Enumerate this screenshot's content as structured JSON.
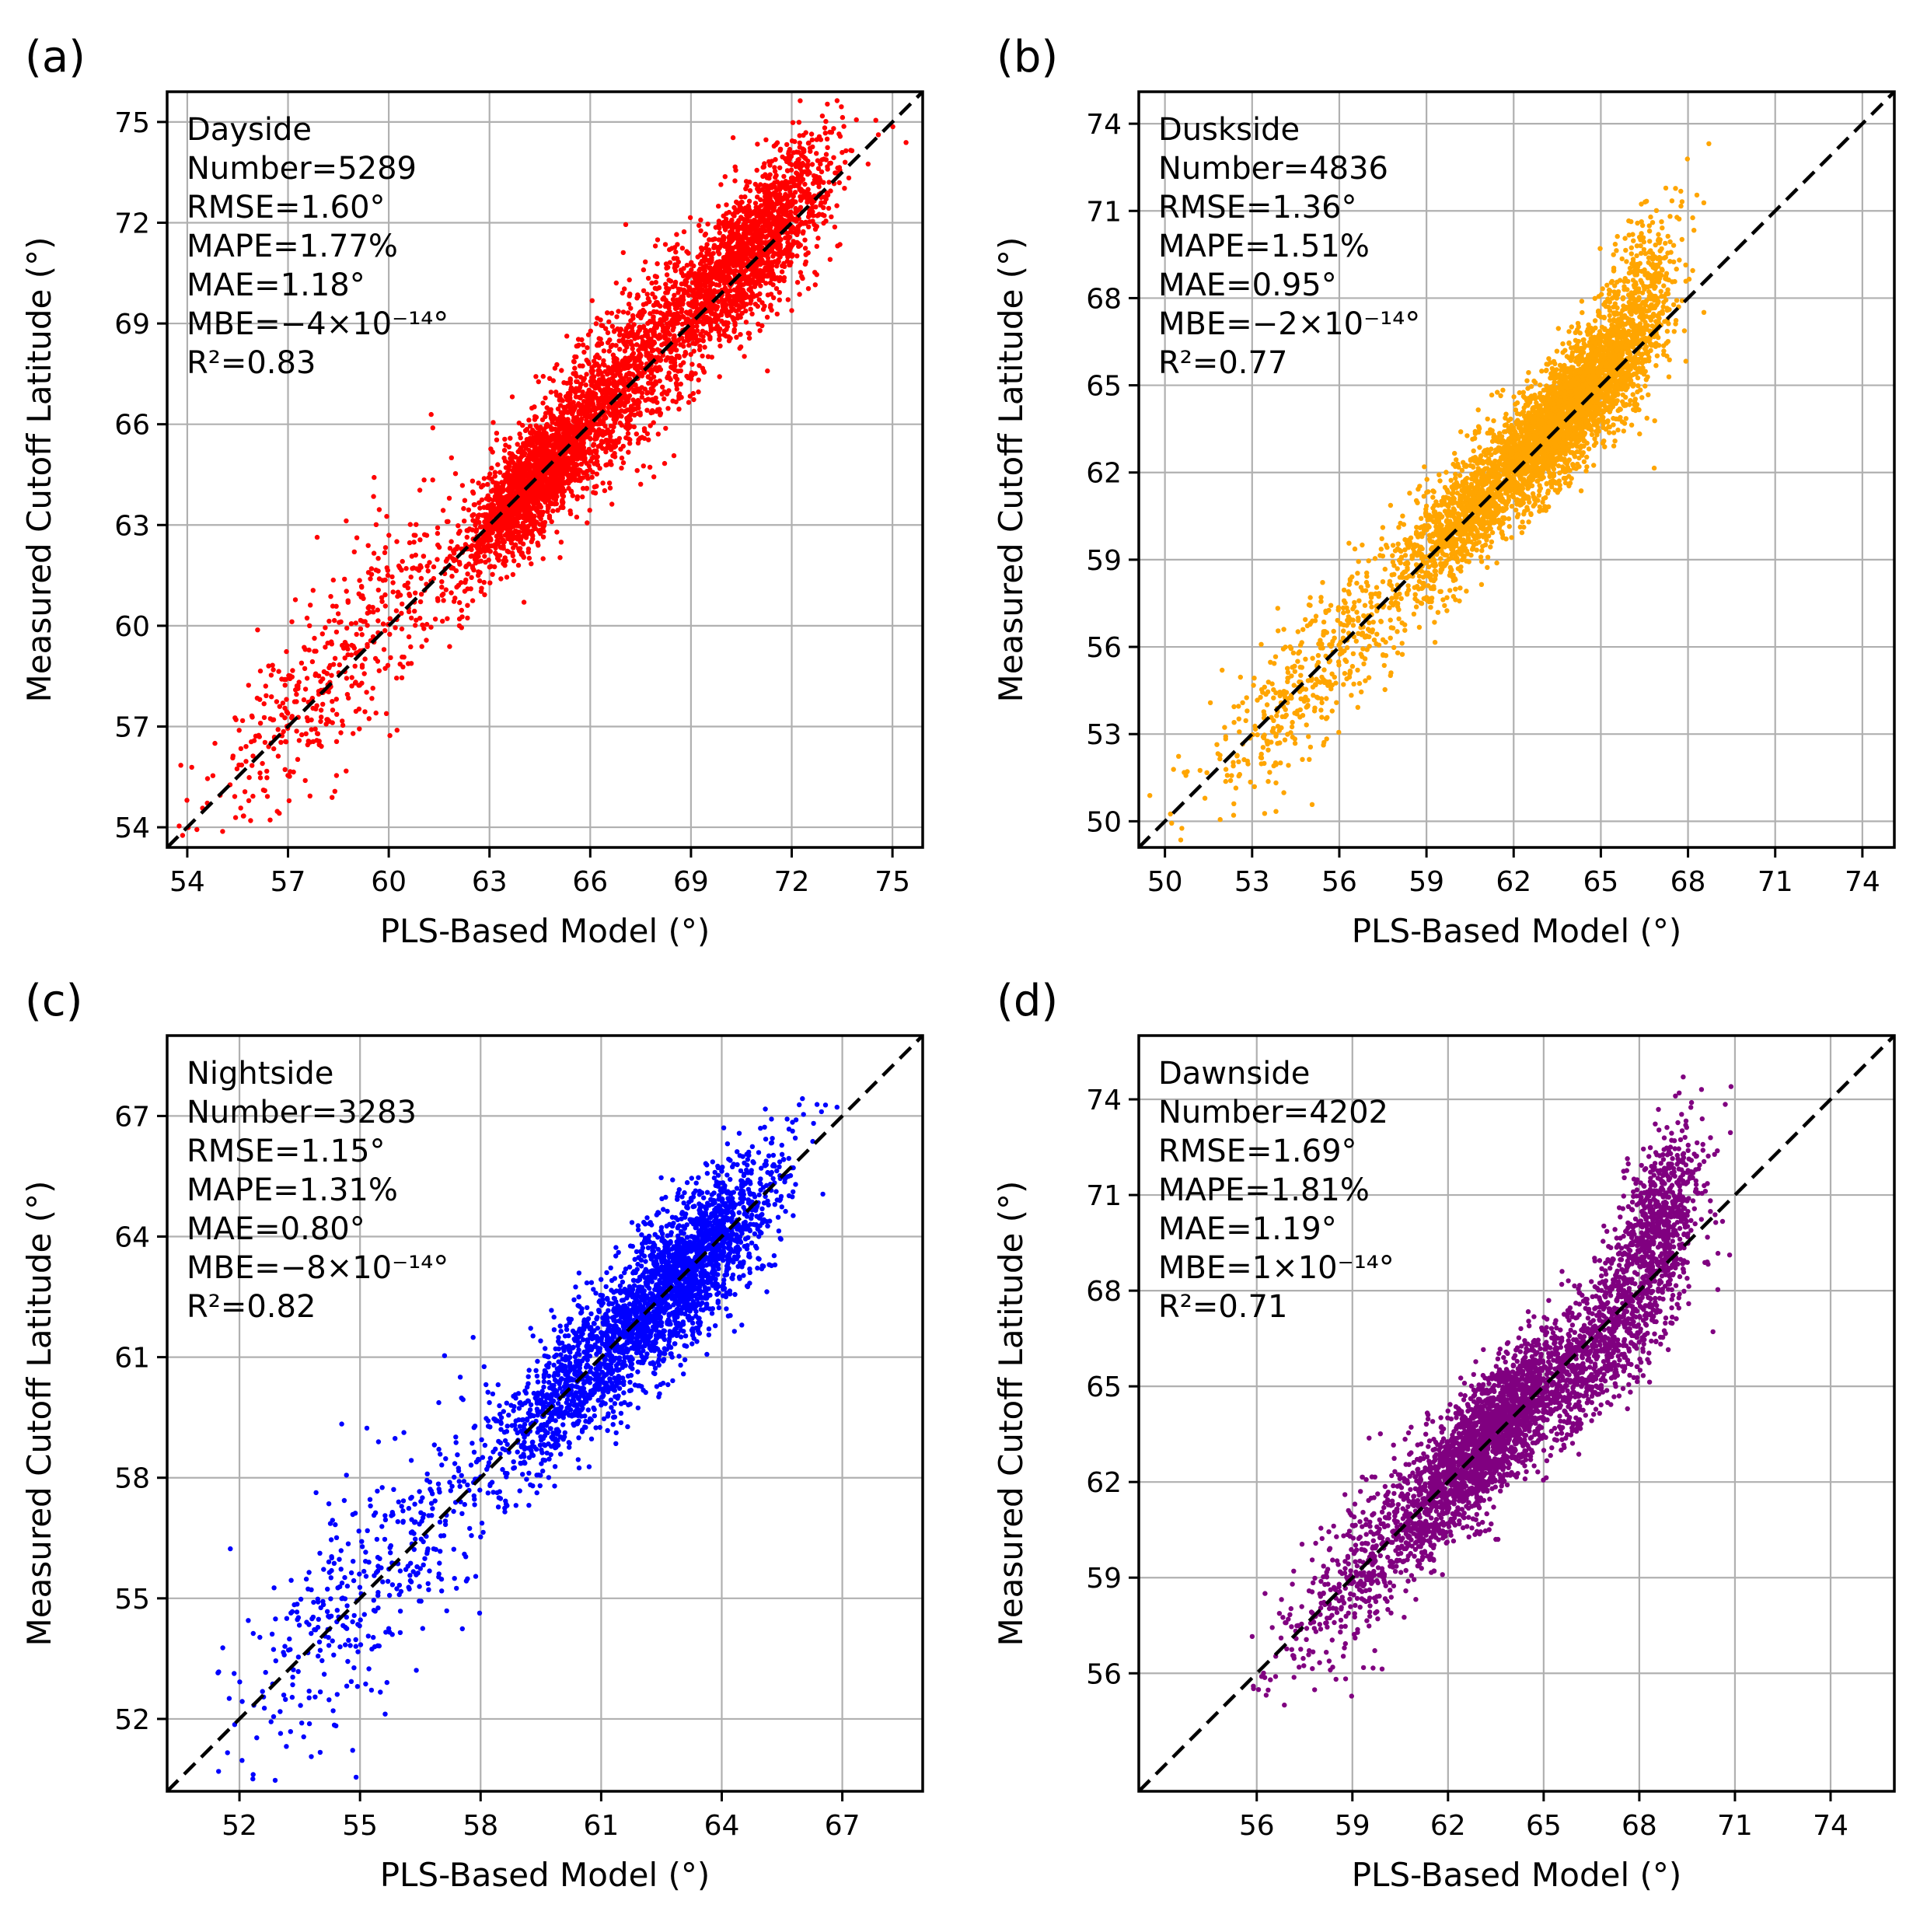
{
  "figure": {
    "xlabel": "PLS-Based Model (°)",
    "ylabel": "Measured Cutoff Latitude (°)"
  },
  "chart_data": [
    {
      "type": "scatter",
      "panel": "(a)",
      "region": "Dayside",
      "color": "#ff0000",
      "xlabel": "PLS-Based Model (°)",
      "ylabel": "Measured Cutoff Latitude (°)",
      "xlim": [
        53.4,
        75.9
      ],
      "ylim": [
        53.4,
        75.9
      ],
      "xticks": [
        54,
        57,
        60,
        63,
        66,
        69,
        72,
        75
      ],
      "yticks": [
        54,
        57,
        60,
        63,
        66,
        69,
        72,
        75
      ],
      "grid": true,
      "reference_line": "y = x",
      "stats": [
        "Dayside",
        "Number=5289",
        "RMSE=1.60°",
        "MAPE=1.77%",
        "MAE=1.18°",
        "MBE=−4×10⁻¹⁴°",
        "R²=0.83"
      ],
      "n_points": 5289,
      "rmse": 1.6,
      "r2": 0.83,
      "clusters": [
        {
          "cx": 64.3,
          "cy": 64.3,
          "sx": 1.0,
          "sy": 1.2,
          "w": 0.33
        },
        {
          "cx": 70.8,
          "cy": 71.2,
          "sx": 1.2,
          "sy": 1.6,
          "w": 0.32
        },
        {
          "cx": 67.0,
          "cy": 67.3,
          "sx": 1.6,
          "sy": 1.9,
          "w": 0.25
        },
        {
          "cx": 58.5,
          "cy": 58.8,
          "sx": 2.1,
          "sy": 2.1,
          "w": 0.1
        }
      ]
    },
    {
      "type": "scatter",
      "panel": "(b)",
      "region": "Duskside",
      "color": "#ffa500",
      "xlabel": "PLS-Based Model (°)",
      "ylabel": "Measured Cutoff Latitude (°)",
      "xlim": [
        49.1,
        75.1
      ],
      "ylim": [
        49.1,
        75.1
      ],
      "xticks": [
        50,
        53,
        56,
        59,
        62,
        65,
        68,
        71,
        74
      ],
      "yticks": [
        50,
        53,
        56,
        59,
        62,
        65,
        68,
        71,
        74
      ],
      "grid": true,
      "reference_line": "y = x",
      "stats": [
        "Duskside",
        "Number=4836",
        "RMSE=1.36°",
        "MAPE=1.51%",
        "MAE=0.95°",
        "MBE=−2×10⁻¹⁴°",
        "R²=0.77"
      ],
      "n_points": 4836,
      "rmse": 1.36,
      "r2": 0.77,
      "clusters": [
        {
          "cx": 63.8,
          "cy": 64.0,
          "sx": 1.3,
          "sy": 1.5,
          "w": 0.55
        },
        {
          "cx": 66.2,
          "cy": 67.5,
          "sx": 0.8,
          "sy": 2.2,
          "w": 0.12
        },
        {
          "cx": 60.5,
          "cy": 60.8,
          "sx": 1.3,
          "sy": 1.6,
          "w": 0.23
        },
        {
          "cx": 55.5,
          "cy": 55.5,
          "sx": 2.0,
          "sy": 2.0,
          "w": 0.1
        }
      ]
    },
    {
      "type": "scatter",
      "panel": "(c)",
      "region": "Nightside",
      "color": "#0000ff",
      "xlabel": "PLS-Based Model (°)",
      "ylabel": "Measured Cutoff Latitude (°)",
      "xlim": [
        50.2,
        69.0
      ],
      "ylim": [
        50.2,
        69.0
      ],
      "xticks": [
        52,
        55,
        58,
        61,
        64,
        67
      ],
      "yticks": [
        52,
        55,
        58,
        61,
        64,
        67
      ],
      "grid": true,
      "reference_line": "y = x",
      "stats": [
        "Nightside",
        "Number=3283",
        "RMSE=1.15°",
        "MAPE=1.31%",
        "MAE=0.80°",
        "MBE=−8×10⁻¹⁴°",
        "R²=0.82"
      ],
      "n_points": 3283,
      "rmse": 1.15,
      "r2": 0.82,
      "clusters": [
        {
          "cx": 63.0,
          "cy": 63.0,
          "sx": 1.2,
          "sy": 1.4,
          "w": 0.62
        },
        {
          "cx": 60.3,
          "cy": 60.4,
          "sx": 1.0,
          "sy": 1.3,
          "w": 0.24
        },
        {
          "cx": 55.5,
          "cy": 55.6,
          "sx": 2.0,
          "sy": 2.2,
          "w": 0.14
        }
      ]
    },
    {
      "type": "scatter",
      "panel": "(d)",
      "region": "Dawnside",
      "color": "#800080",
      "xlabel": "PLS-Based Model (°)",
      "ylabel": "Measured Cutoff Latitude (°)",
      "xlim": [
        52.3,
        76.0
      ],
      "ylim": [
        52.3,
        76.0
      ],
      "xticks": [
        56,
        59,
        62,
        65,
        68,
        71,
        74
      ],
      "yticks": [
        56,
        59,
        62,
        65,
        68,
        71,
        74
      ],
      "grid": true,
      "reference_line": "y = x",
      "stats": [
        "Dawnside",
        "Number=4202",
        "RMSE=1.69°",
        "MAPE=1.81%",
        "MAE=1.19°",
        "MBE=1×10⁻¹⁴°",
        "R²=0.71"
      ],
      "n_points": 4202,
      "rmse": 1.69,
      "r2": 0.71,
      "clusters": [
        {
          "cx": 63.3,
          "cy": 63.4,
          "sx": 1.3,
          "sy": 1.5,
          "w": 0.5
        },
        {
          "cx": 67.0,
          "cy": 66.5,
          "sx": 1.2,
          "sy": 1.8,
          "w": 0.2
        },
        {
          "cx": 68.6,
          "cy": 70.2,
          "sx": 0.7,
          "sy": 1.8,
          "w": 0.15
        },
        {
          "cx": 59.8,
          "cy": 59.8,
          "sx": 1.6,
          "sy": 1.8,
          "w": 0.15
        }
      ]
    }
  ]
}
